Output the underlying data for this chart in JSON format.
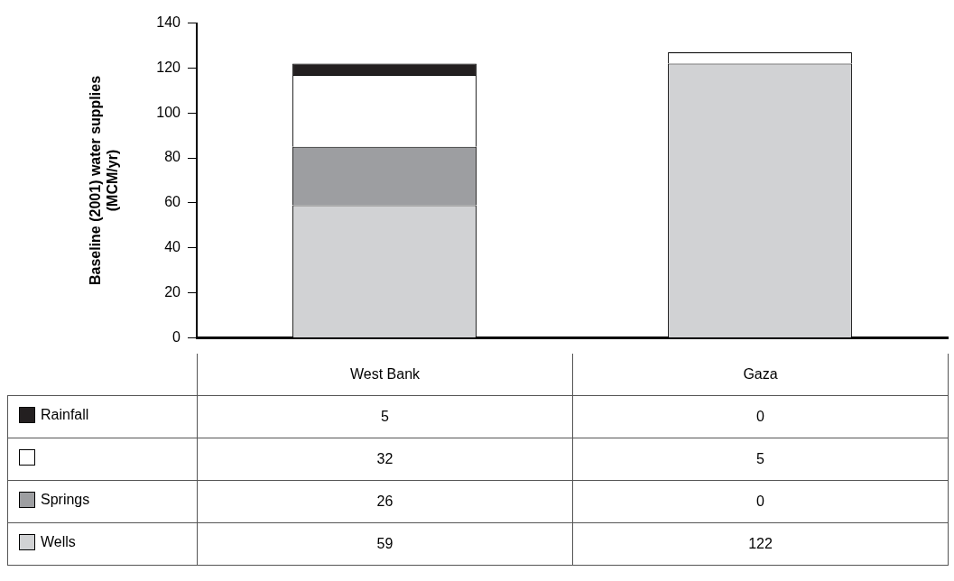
{
  "chart_data": {
    "type": "bar",
    "ylabel": "Baseline (2001) water supplies\n(MCM/yr)",
    "categories": [
      "West Bank",
      "Gaza"
    ],
    "series": [
      {
        "name": "Wells",
        "color": "#d1d2d4",
        "values": [
          59,
          122
        ]
      },
      {
        "name": "Springs",
        "color": "#9d9ea1",
        "values": [
          26,
          0
        ]
      },
      {
        "color": "#ffffff",
        "values": [
          32,
          5
        ]
      },
      {
        "name": "Rainfall",
        "color": "#231f20",
        "values": [
          5,
          0
        ]
      }
    ],
    "stacked": true,
    "ylim": [
      0,
      140
    ],
    "yticks": [
      0,
      20,
      40,
      60,
      80,
      100,
      120,
      140
    ],
    "grid": false,
    "legend": "bottom",
    "data_labels": true
  }
}
